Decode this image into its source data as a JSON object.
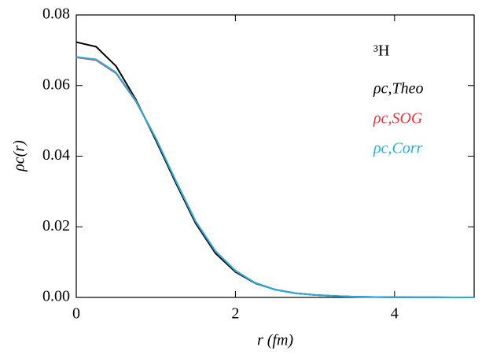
{
  "chart_data": {
    "type": "line",
    "x_label": "r (fm)",
    "y_label": "ρc(r)",
    "annotation": "³H",
    "x": [
      0,
      0.25,
      0.5,
      0.75,
      1,
      1.25,
      1.5,
      1.75,
      2,
      2.25,
      2.5,
      2.75,
      3,
      3.25,
      3.5,
      3.75,
      4,
      4.25,
      4.5,
      4.75,
      5
    ],
    "series": [
      {
        "name": "ρc,Theo",
        "color": "#000000",
        "values": [
          0.0723,
          0.071,
          0.0655,
          0.056,
          0.0445,
          0.0325,
          0.021,
          0.0125,
          0.0072,
          0.004,
          0.0022,
          0.0012,
          0.0007,
          0.0004,
          0.0002,
          0.0001,
          6e-05,
          3e-05,
          2e-05,
          1e-05,
          0
        ]
      },
      {
        "name": "ρc,SOG",
        "color": "#e8333a",
        "values": [
          0.068,
          0.0672,
          0.0635,
          0.0555,
          0.045,
          0.033,
          0.0215,
          0.013,
          0.0075,
          0.0041,
          0.0022,
          0.0012,
          0.0007,
          0.0004,
          0.0002,
          0.0001,
          6e-05,
          3e-05,
          2e-05,
          1e-05,
          0
        ]
      },
      {
        "name": "ρc,Corr",
        "color": "#1fb0e0",
        "values": [
          0.0681,
          0.0674,
          0.0637,
          0.0557,
          0.0451,
          0.0331,
          0.0216,
          0.0131,
          0.0076,
          0.0041,
          0.0022,
          0.0012,
          0.0007,
          0.0004,
          0.0002,
          0.0001,
          6e-05,
          3e-05,
          2e-05,
          1e-05,
          0
        ]
      }
    ],
    "xlim": [
      0,
      5
    ],
    "xticks": [
      0,
      2,
      4
    ],
    "ylim": [
      0,
      0.08
    ],
    "yticks": [
      {
        "value": 0,
        "label": "0.00"
      },
      0.02,
      0.04,
      0.06,
      0.08
    ]
  }
}
